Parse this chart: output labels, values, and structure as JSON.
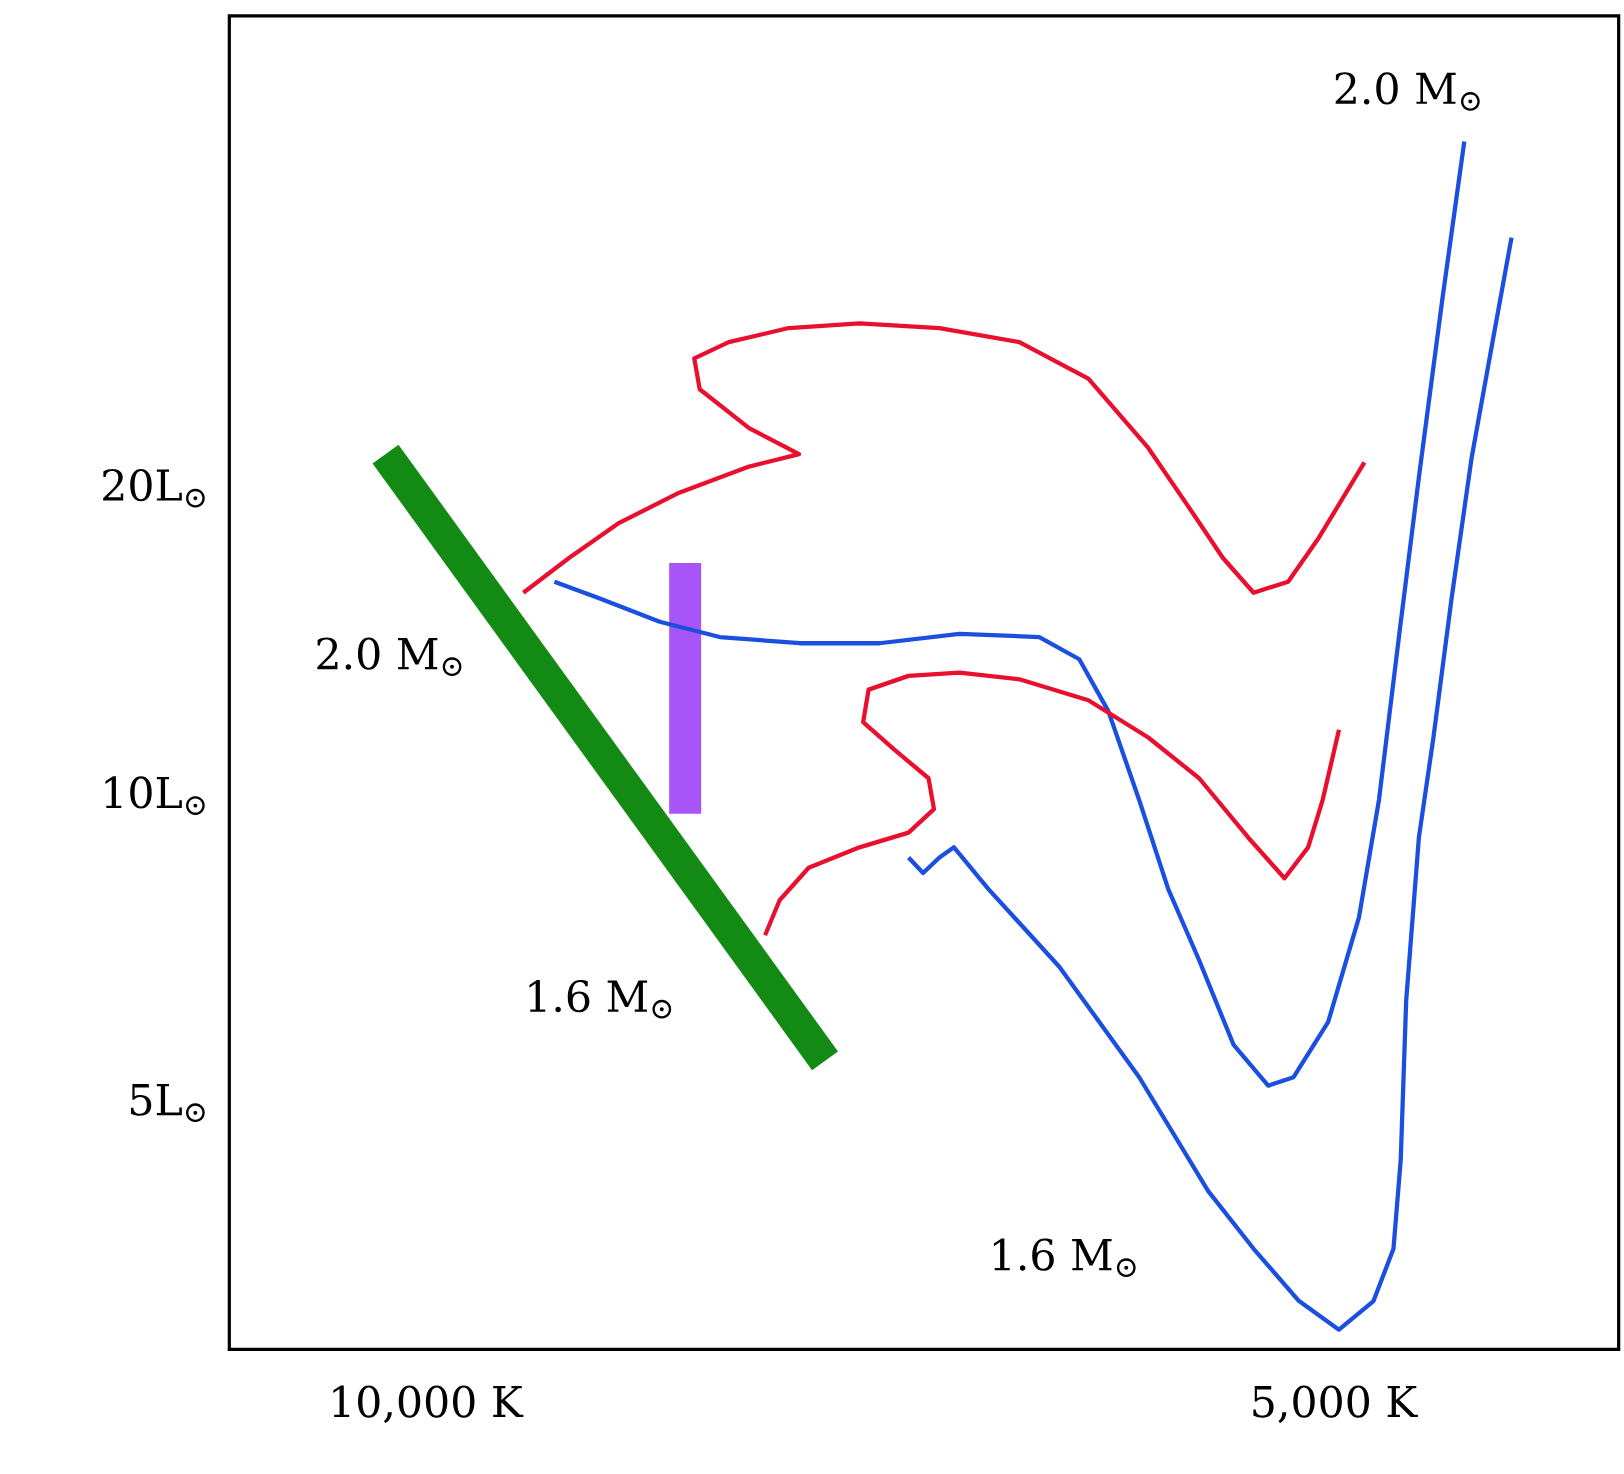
{
  "chart_data": {
    "type": "line",
    "log": "y",
    "xlim": [
      11080,
      3430
    ],
    "ylim": [
      2.87,
      58
    ],
    "xticks": [
      {
        "value": 10000,
        "label": "10,000 K"
      },
      {
        "value": 5000,
        "label": "5,000 K"
      }
    ],
    "yticks": [
      {
        "value": 5,
        "label": "5L$_{⊙}$"
      },
      {
        "value": 10,
        "label": "10L$_{⊙}$"
      },
      {
        "value": 20,
        "label": "20L$_{⊙}$"
      }
    ],
    "series": [
      {
        "color": "#138a13",
        "x": [
          10220,
          7800
        ],
        "values": [
          21.6,
          5.5
        ]
      },
      {
        "color": "#a855f7",
        "x": [
          8570,
          8570
        ],
        "values": [
          16.9,
          9.6
        ]
      },
      {
        "name": "2.0 M$_{⊙}$",
        "color": "#e8102e",
        "x": [
          9461,
          9208,
          8933,
          8603,
          8218,
          7943,
          8218,
          8490,
          8520,
          8330,
          8000,
          7610,
          7170,
          6730,
          6350,
          6020,
          5800,
          5610,
          5440,
          5250,
          5080,
          4830
        ],
        "values": [
          15.8,
          17.1,
          18.5,
          19.8,
          21.0,
          21.6,
          22.9,
          25.0,
          26.8,
          27.8,
          28.7,
          29.0,
          28.7,
          27.8,
          25.6,
          21.9,
          19.2,
          17.1,
          15.8,
          16.2,
          17.9,
          21.2
        ]
      },
      {
        "name": "2.0 M$_{⊙}$",
        "color": "#1a4fe0",
        "x": [
          4280,
          4400,
          4530,
          4640,
          4750,
          4860,
          5030,
          5220,
          5360,
          5550,
          5740,
          5910,
          6070,
          6240,
          6400,
          6620,
          7060,
          7500,
          7940,
          8380,
          8710,
          9040,
          9290
        ],
        "values": [
          43.7,
          30.7,
          20.5,
          14.3,
          9.9,
          7.6,
          6.0,
          5.3,
          5.2,
          5.7,
          6.9,
          8.1,
          9.9,
          12.1,
          13.6,
          14.3,
          14.4,
          14.1,
          14.1,
          14.3,
          14.8,
          15.6,
          16.2
        ]
      },
      {
        "name": "1.6 M$_{⊙}$",
        "color": "#e8102e",
        "x": [
          8130,
          8050,
          7890,
          7610,
          7340,
          7200,
          7230,
          7420,
          7590,
          7560,
          7340,
          7060,
          6730,
          6350,
          6020,
          5740,
          5470,
          5270,
          5140,
          5060,
          4970
        ],
        "values": [
          7.3,
          7.9,
          8.5,
          8.9,
          9.2,
          9.7,
          10.4,
          11.1,
          11.8,
          12.7,
          13.1,
          13.2,
          13.0,
          12.4,
          11.4,
          10.4,
          9.1,
          8.3,
          8.9,
          9.9,
          11.6
        ]
      },
      {
        "name": "1.6 M$_{⊙}$",
        "color": "#1a4fe0",
        "x": [
          4020,
          4120,
          4240,
          4350,
          4450,
          4530,
          4600,
          4630,
          4670,
          4780,
          4970,
          5190,
          5440,
          5690,
          6070,
          6510,
          6900,
          7090,
          7170,
          7260,
          7340
        ],
        "values": [
          35.2,
          28.1,
          21.4,
          15.6,
          11.4,
          9.1,
          6.3,
          4.4,
          3.6,
          3.2,
          3.0,
          3.2,
          3.6,
          4.1,
          5.3,
          6.8,
          8.1,
          8.9,
          8.7,
          8.4,
          8.7
        ]
      }
    ]
  }
}
